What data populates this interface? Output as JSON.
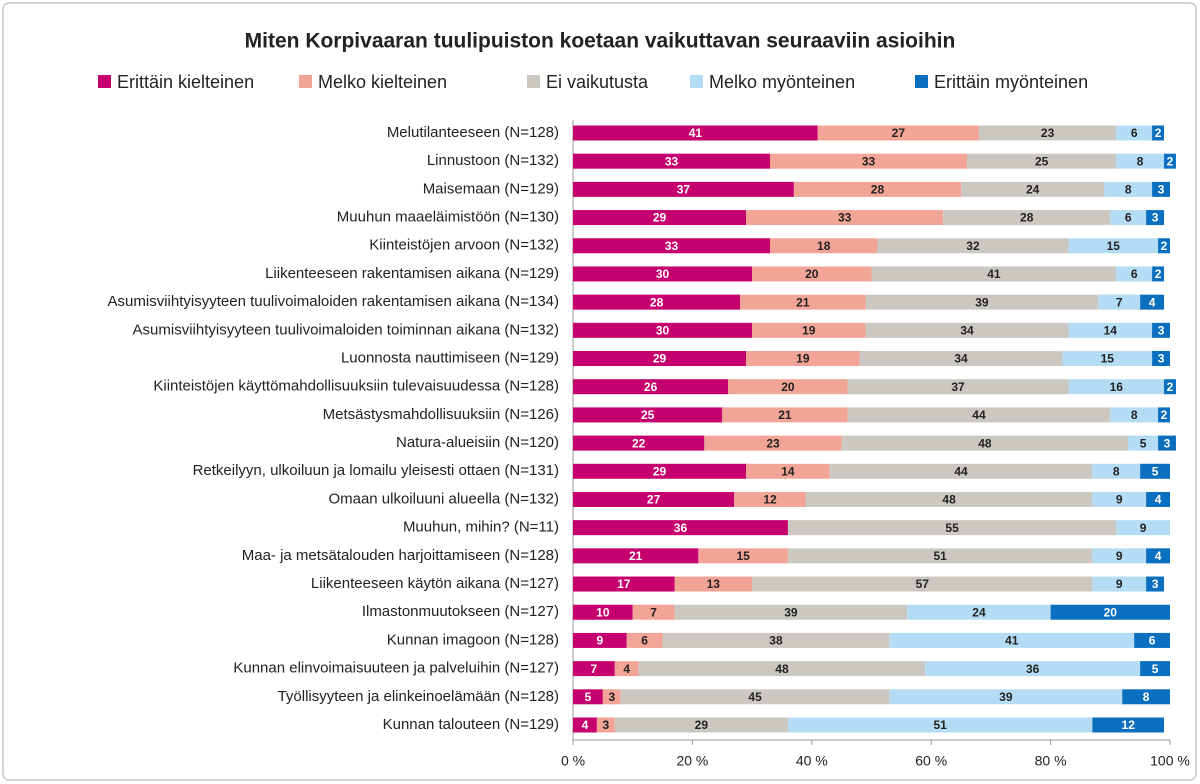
{
  "chart_data": {
    "type": "stacked-bar-horizontal",
    "title": "Miten Korpivaaran tuulipuiston koetaan vaikuttavan seuraaviin asioihin",
    "categories": [
      "Melutilanteeseen (N=128)",
      "Linnustoon (N=132)",
      "Maisemaan (N=129)",
      "Muuhun maaeläimistöön (N=130)",
      "Kiinteistöjen arvoon (N=132)",
      "Liikenteeseen rakentamisen aikana (N=129)",
      "Asumisviihtyisyyteen tuulivoimaloiden rakentamisen aikana (N=134)",
      "Asumisviihtyisyyteen tuulivoimaloiden toiminnan aikana (N=132)",
      "Luonnosta nauttimiseen (N=129)",
      "Kiinteistöjen käyttömahdollisuuksiin tulevaisuudessa (N=128)",
      "Metsästysmahdollisuuksiin (N=126)",
      "Natura-alueisiin (N=120)",
      "Retkeilyyn, ulkoiluun ja lomailu yleisesti ottaen (N=131)",
      "Omaan ulkoiluuni alueella (N=132)",
      "Muuhun, mihin? (N=11)",
      "Maa- ja metsätalouden harjoittamiseen (N=128)",
      "Liikenteeseen käytön aikana (N=127)",
      "Ilmastonmuutokseen (N=127)",
      "Kunnan imagoon (N=128)",
      "Kunnan elinvoimaisuuteen ja palveluihin (N=127)",
      "Työllisyyteen ja elinkeinoelämään (N=128)",
      "Kunnan talouteen (N=129)"
    ],
    "series": [
      {
        "name": "Erittäin kielteinen",
        "color": "#c5006e",
        "label_color": "#ffffff",
        "values": [
          41,
          33,
          37,
          29,
          33,
          30,
          28,
          30,
          29,
          26,
          25,
          22,
          29,
          27,
          36,
          21,
          17,
          10,
          9,
          7,
          5,
          4
        ]
      },
      {
        "name": "Melko kielteinen",
        "color": "#f2a497",
        "label_color": "#222222",
        "values": [
          27,
          33,
          28,
          33,
          18,
          20,
          21,
          19,
          19,
          20,
          21,
          23,
          14,
          12,
          null,
          15,
          13,
          7,
          6,
          4,
          3,
          3
        ]
      },
      {
        "name": "Ei vaikutusta",
        "color": "#cbc8c1",
        "label_color": "#222222",
        "values": [
          23,
          25,
          24,
          28,
          32,
          41,
          39,
          34,
          34,
          37,
          44,
          48,
          44,
          48,
          55,
          51,
          57,
          39,
          38,
          48,
          45,
          29
        ]
      },
      {
        "name": "Melko myönteinen",
        "color": "#b4dcf4",
        "label_color": "#222222",
        "values": [
          6,
          8,
          8,
          6,
          15,
          6,
          7,
          14,
          15,
          16,
          8,
          5,
          8,
          9,
          9,
          9,
          9,
          24,
          41,
          36,
          39,
          51
        ]
      },
      {
        "name": "Erittäin myönteinen",
        "color": "#0a6fbe",
        "label_color": "#ffffff",
        "values": [
          2,
          2,
          3,
          3,
          2,
          2,
          4,
          3,
          3,
          2,
          2,
          3,
          5,
          4,
          null,
          4,
          3,
          20,
          6,
          5,
          8,
          12
        ]
      }
    ],
    "xlim": [
      0,
      100
    ],
    "xticks": [
      {
        "value": 0,
        "label": "0 %"
      },
      {
        "value": 20,
        "label": "20 %"
      },
      {
        "value": 40,
        "label": "40 %"
      },
      {
        "value": 60,
        "label": "60 %"
      },
      {
        "value": 80,
        "label": "80 %"
      },
      {
        "value": 100,
        "label": "100 %"
      }
    ],
    "grid": false,
    "legend": "top"
  }
}
